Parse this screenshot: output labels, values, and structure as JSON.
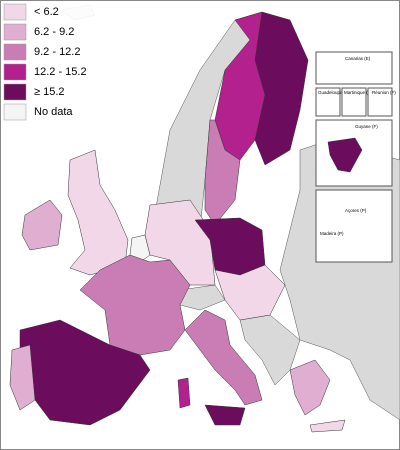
{
  "legend": {
    "items": [
      {
        "label": "< 6.2",
        "color": "#f2d7e9"
      },
      {
        "label": "6.2 - 9.2",
        "color": "#dfaed1"
      },
      {
        "label": "9.2 - 12.2",
        "color": "#c97db4"
      },
      {
        "label": "12.2 - 15.2",
        "color": "#b2218e"
      },
      {
        "label": "≥ 15.2",
        "color": "#6c0c5d"
      },
      {
        "label": "No data",
        "color": "#f5f5f5"
      }
    ]
  },
  "insets": [
    "Canarias (E)",
    "Guadeloupe (F)",
    "Martinique (F)",
    "Réunion (F)",
    "Guyane (F)",
    "Açores (P)",
    "Madeira (P)"
  ]
}
